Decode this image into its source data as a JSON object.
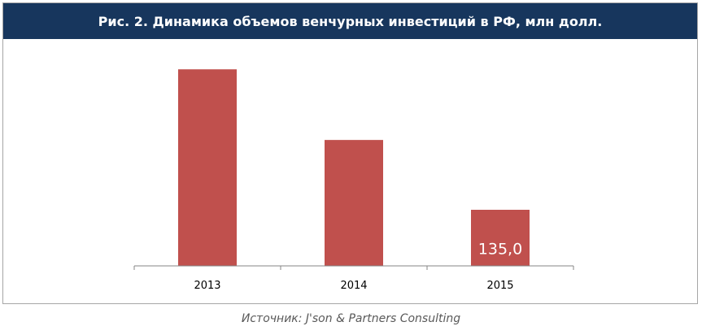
{
  "chart_data": {
    "type": "bar",
    "title": "Рис. 2. Динамика объемов венчурных инвестиций в РФ, млн долл.",
    "categories": [
      "2013",
      "2014",
      "2015"
    ],
    "values": [
      473,
      303,
      135.0
    ],
    "data_labels": [
      "",
      "",
      "135,0"
    ],
    "ylim": [
      0,
      500
    ],
    "grid": false,
    "legend": "none",
    "bar_color": "#c0504d",
    "title_background": "#17365d"
  },
  "source": "Источник: J'son & Partners Consulting"
}
